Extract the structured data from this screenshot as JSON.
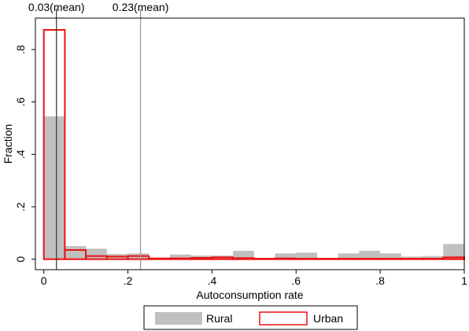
{
  "chart_data": {
    "type": "bar",
    "xlabel": "Autoconsumption rate",
    "ylabel": "Fraction",
    "xlim": [
      -0.02,
      1.0
    ],
    "ylim": [
      -0.04,
      0.92
    ],
    "bin_width": 0.05,
    "x_ticks": [
      {
        "value": 0,
        "label": "0"
      },
      {
        "value": 0.2,
        "label": ".2"
      },
      {
        "value": 0.4,
        "label": ".4"
      },
      {
        "value": 0.6,
        "label": ".6"
      },
      {
        "value": 0.8,
        "label": ".8"
      },
      {
        "value": 1.0,
        "label": "1"
      }
    ],
    "y_ticks": [
      {
        "value": 0,
        "label": "0"
      },
      {
        "value": 0.2,
        "label": ".2"
      },
      {
        "value": 0.4,
        "label": ".4"
      },
      {
        "value": 0.6,
        "label": ".6"
      },
      {
        "value": 0.8,
        "label": ".8"
      }
    ],
    "series": [
      {
        "name": "Rural",
        "style": "filled",
        "color": "#c0c0c0",
        "bin_starts": [
          0,
          0.05,
          0.1,
          0.15,
          0.2,
          0.25,
          0.3,
          0.35,
          0.4,
          0.45,
          0.5,
          0.55,
          0.6,
          0.65,
          0.7,
          0.75,
          0.8,
          0.85,
          0.9,
          0.95
        ],
        "values": [
          0.545,
          0.05,
          0.04,
          0.02,
          0.022,
          0.005,
          0.018,
          0.014,
          0.014,
          0.032,
          0.003,
          0.022,
          0.025,
          0.003,
          0.022,
          0.032,
          0.022,
          0.01,
          0.012,
          0.058
        ]
      },
      {
        "name": "Urban",
        "style": "outline",
        "color": "#ee1111",
        "bin_starts": [
          0,
          0.05,
          0.1,
          0.15,
          0.2,
          0.25,
          0.3,
          0.35,
          0.4,
          0.45,
          0.5,
          0.55,
          0.6,
          0.65,
          0.7,
          0.75,
          0.8,
          0.85,
          0.9,
          0.95
        ],
        "values": [
          0.875,
          0.035,
          0.012,
          0.01,
          0.012,
          0.003,
          0.003,
          0.005,
          0.007,
          0.004,
          0.002,
          0.003,
          0.002,
          0.002,
          0.002,
          0.002,
          0.002,
          0.002,
          0.002,
          0.007
        ]
      }
    ],
    "reference_lines": [
      {
        "value": 0.03,
        "label": "0.03(mean)",
        "color": "#333333"
      },
      {
        "value": 0.23,
        "label": "0.23(mean)",
        "color": "#999999"
      }
    ],
    "legend": {
      "position": "bottom",
      "items": [
        "Rural",
        "Urban"
      ]
    },
    "grid": false
  }
}
